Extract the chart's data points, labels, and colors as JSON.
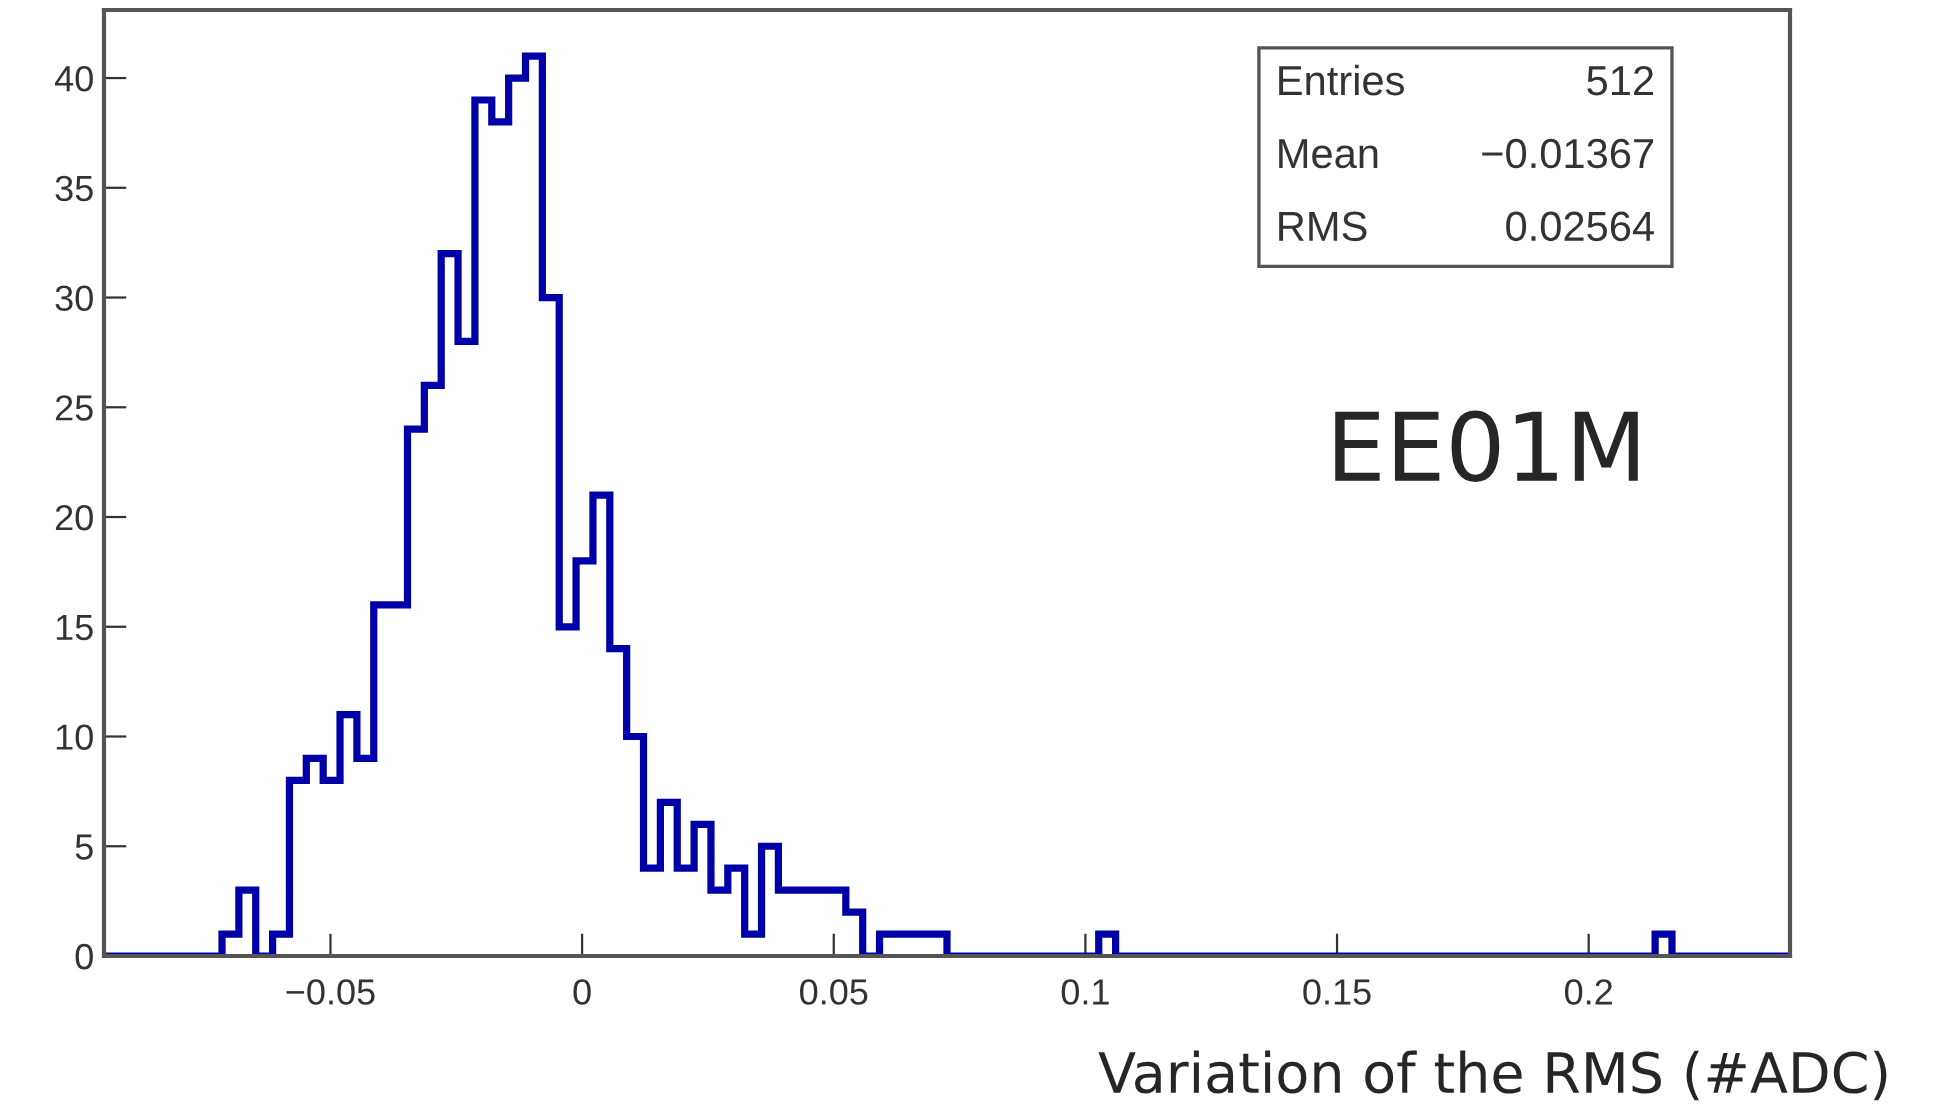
{
  "chart_data": {
    "type": "histogram",
    "xlabel": "Variation of the RMS (#ADC)",
    "bins": [
      -0.095,
      -0.09165,
      -0.0883,
      -0.08495,
      -0.0816,
      -0.07825,
      -0.0749,
      -0.07155,
      -0.0682,
      -0.06485,
      -0.0615,
      -0.05815,
      -0.0548,
      -0.05145,
      -0.0481,
      -0.04475,
      -0.0414,
      -0.03805,
      -0.0347,
      -0.03135,
      -0.028,
      -0.02465,
      -0.0213,
      -0.01795,
      -0.0146,
      -0.01125,
      -0.0079,
      -0.00455,
      -0.0012,
      0.00215,
      0.0055,
      0.00885,
      0.0122,
      0.01555,
      0.0189,
      0.02225,
      0.0256,
      0.02895,
      0.0323,
      0.03565,
      0.039,
      0.04235,
      0.0457,
      0.04905,
      0.0524,
      0.05575,
      0.0591,
      0.06245,
      0.0658,
      0.06915,
      0.0725,
      0.07585,
      0.0792,
      0.08255,
      0.0859,
      0.08925,
      0.0926,
      0.09595,
      0.0993,
      0.10265,
      0.106,
      0.10935,
      0.1127,
      0.11605,
      0.1194,
      0.12275,
      0.1261,
      0.12945,
      0.1328,
      0.13615,
      0.1395,
      0.14285,
      0.1462,
      0.14955,
      0.1529,
      0.15625,
      0.1596,
      0.16295,
      0.1663,
      0.16965,
      0.173,
      0.17635,
      0.1797,
      0.18305,
      0.1864,
      0.18975,
      0.1931,
      0.19645,
      0.1998,
      0.20315,
      0.2065,
      0.20985,
      0.2132,
      0.21655,
      0.2199,
      0.22325,
      0.2266,
      0.22995,
      0.2333,
      0.23665,
      0.24
    ],
    "values": [
      0,
      0,
      0,
      0,
      0,
      0,
      0,
      1,
      3,
      0,
      1,
      8,
      9,
      8,
      11,
      9,
      16,
      16,
      24,
      26,
      32,
      28,
      39,
      38,
      40,
      41,
      30,
      15,
      18,
      21,
      14,
      10,
      4,
      7,
      4,
      6,
      3,
      4,
      1,
      5,
      3,
      3,
      3,
      3,
      2,
      0,
      1,
      1,
      1,
      1,
      0,
      0,
      0,
      0,
      0,
      0,
      0,
      0,
      0,
      1,
      0,
      0,
      0,
      0,
      0,
      0,
      0,
      0,
      0,
      0,
      0,
      0,
      0,
      0,
      0,
      0,
      0,
      0,
      0,
      0,
      0,
      0,
      0,
      0,
      0,
      0,
      0,
      0,
      0,
      0,
      0,
      0,
      1,
      0,
      0,
      0,
      0,
      0,
      0,
      0
    ],
    "color": "#0000a8",
    "xlim": [
      -0.095,
      0.24
    ],
    "xticks": [
      {
        "value": -0.05,
        "label": "−0.05"
      },
      0,
      0.05,
      0.1,
      0.15,
      0.2
    ],
    "ylim": [
      0,
      43.1
    ],
    "yticks": [
      0,
      5,
      10,
      15,
      20,
      25,
      30,
      35,
      40
    ],
    "grid": false,
    "annotations": [
      "Entries",
      "512",
      "Mean",
      "−0.01367",
      "RMS",
      "0.02564",
      "EE01M"
    ]
  }
}
